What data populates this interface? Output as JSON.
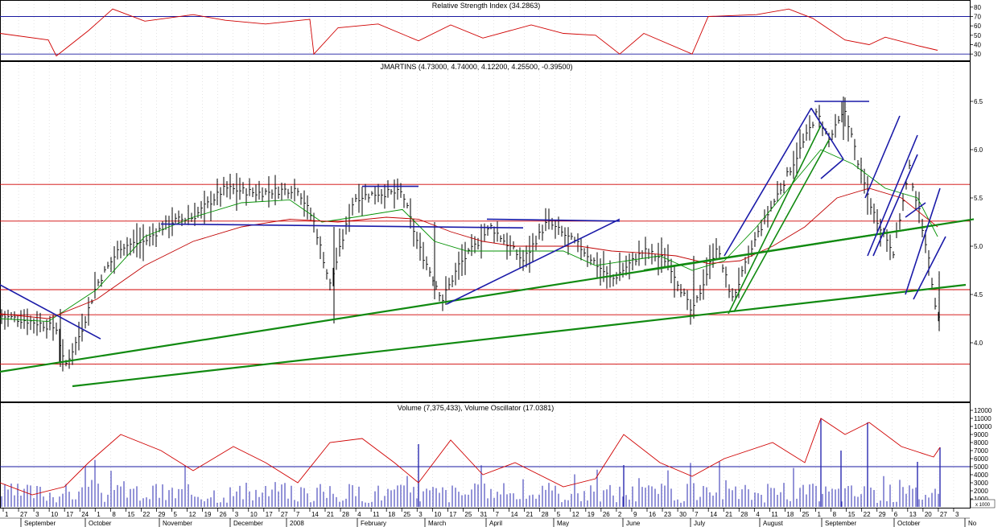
{
  "panels": {
    "rsi": {
      "title": "Relative Strength Index (34.2863)",
      "scale": [
        30,
        40,
        50,
        60,
        70,
        80
      ],
      "scale_min": 25,
      "scale_max": 85,
      "levels": [
        30,
        70
      ]
    },
    "price": {
      "title": "JMARTINS (4.73000, 4.74000, 4.12200, 4.25500, -0.39500)",
      "scale": [
        4.0,
        4.5,
        5.0,
        5.5,
        6.0,
        6.5
      ],
      "scale_min": 3.4,
      "scale_max": 6.8,
      "horizontal_levels": [
        5.64,
        5.26,
        4.55,
        4.29,
        3.78
      ]
    },
    "volume": {
      "title": "Volume (7,375,433), Volume Oscillator (17.0381)",
      "scale": [
        1000,
        2000,
        3000,
        4000,
        5000,
        6000,
        7000,
        8000,
        9000,
        10000,
        11000,
        12000
      ],
      "scale_min": 0,
      "scale_max": 12500,
      "level": 5000,
      "unit_badge": "x 1000"
    }
  },
  "x_axis": {
    "day_ticks": [
      "1",
      "27",
      "3",
      "10",
      "17",
      "24",
      "1",
      "8",
      "15",
      "22",
      "29",
      "5",
      "12",
      "19",
      "26",
      "3",
      "10",
      "17",
      "27",
      "7",
      "14",
      "21",
      "28",
      "4",
      "11",
      "18",
      "25",
      "3",
      "10",
      "17",
      "25",
      "31",
      "7",
      "14",
      "21",
      "28",
      "5",
      "12",
      "19",
      "26",
      "2",
      "9",
      "16",
      "23",
      "30",
      "7",
      "14",
      "21",
      "28",
      "4",
      "11",
      "18",
      "25",
      "1",
      "8",
      "15",
      "22",
      "29",
      "6",
      "13",
      "20",
      "27",
      "3"
    ],
    "months": [
      "September",
      "October",
      "November",
      "December",
      "2008",
      "February",
      "March",
      "April",
      "May",
      "June",
      "July",
      "August",
      "September",
      "October",
      "No"
    ]
  },
  "chart_data": [
    {
      "type": "line",
      "title": "Relative Strength Index (34.2863)",
      "ylim": [
        25,
        85
      ],
      "reference_lines": [
        30,
        70
      ],
      "series": [
        {
          "x": [
            0,
            60,
            70,
            110,
            140,
            180,
            240,
            280,
            330,
            385,
            390,
            420,
            470,
            520,
            560,
            600,
            660,
            700,
            740,
            770,
            800,
            860,
            880,
            940,
            980,
            1010,
            1050,
            1080,
            1100,
            1140,
            1165
          ],
          "values": [
            52,
            45,
            28,
            55,
            78,
            65,
            72,
            66,
            62,
            67,
            30,
            58,
            62,
            44,
            61,
            47,
            61,
            52,
            50,
            30,
            52,
            30,
            70,
            72,
            78,
            68,
            45,
            40,
            48,
            39,
            34
          ]
        }
      ]
    },
    {
      "type": "line",
      "title": "JMARTINS (4.73000, 4.74000, 4.12200, 4.25500, -0.39500)",
      "ylim": [
        3.4,
        6.8
      ],
      "series": [
        {
          "x": [
            0,
            40,
            70,
            80,
            100,
            120,
            150,
            180,
            210,
            240,
            280,
            320,
            370,
            390,
            410,
            440,
            470,
            500,
            520,
            550,
            570,
            610,
            650,
            680,
            720,
            760,
            800,
            830,
            860,
            890,
            910,
            940,
            970,
            1000,
            1015,
            1030,
            1050,
            1070,
            1085,
            1110,
            1130,
            1150,
            1165
          ],
          "values": [
            4.28,
            4.22,
            4.15,
            3.75,
            4.1,
            4.6,
            5.0,
            5.05,
            5.25,
            5.3,
            5.6,
            5.55,
            5.6,
            5.25,
            4.6,
            5.5,
            5.55,
            5.55,
            5.0,
            4.45,
            4.8,
            5.2,
            4.85,
            5.25,
            5.0,
            4.65,
            4.95,
            4.85,
            4.3,
            5.0,
            4.45,
            5.1,
            5.6,
            6.1,
            6.38,
            6.1,
            6.4,
            5.75,
            5.35,
            4.95,
            5.8,
            5.05,
            4.26
          ]
        },
        {
          "x": [
            0,
            60,
            120,
            180,
            240,
            300,
            360,
            400,
            440,
            500,
            540,
            580,
            620,
            660,
            700,
            740,
            780,
            820,
            860,
            900,
            940,
            980,
            1020,
            1060,
            1100,
            1140,
            1165
          ],
          "values": [
            4.25,
            4.22,
            4.55,
            5.1,
            5.3,
            5.45,
            5.48,
            5.25,
            5.3,
            5.38,
            5.05,
            4.95,
            4.95,
            4.95,
            4.95,
            4.8,
            4.85,
            4.9,
            4.75,
            4.85,
            5.2,
            5.6,
            6.0,
            5.85,
            5.6,
            5.5,
            5.1
          ]
        },
        {
          "x": [
            0,
            60,
            120,
            180,
            240,
            300,
            360,
            420,
            480,
            520,
            560,
            600,
            640,
            680,
            720,
            760,
            800,
            840,
            880,
            920,
            960,
            1000,
            1040,
            1080,
            1120,
            1165
          ],
          "values": [
            4.3,
            4.25,
            4.45,
            4.8,
            5.05,
            5.2,
            5.28,
            5.25,
            5.3,
            5.28,
            5.15,
            5.05,
            5.0,
            5.0,
            5.0,
            4.95,
            4.93,
            4.9,
            4.82,
            4.85,
            5.0,
            5.2,
            5.5,
            5.6,
            5.5,
            5.2
          ]
        }
      ]
    },
    {
      "type": "line",
      "title": "Volume (7,375,433), Volume Oscillator (17.0381)",
      "ylim": [
        0,
        12500
      ],
      "reference_lines": [
        5000
      ],
      "series": [
        {
          "x": [
            0,
            40,
            80,
            110,
            150,
            200,
            240,
            290,
            330,
            370,
            410,
            450,
            490,
            520,
            560,
            600,
            640,
            700,
            740,
            775,
            820,
            860,
            900,
            960,
            1000,
            1020,
            1050,
            1080,
            1120,
            1160,
            1168
          ],
          "values": [
            3000,
            1500,
            2500,
            5500,
            9000,
            7000,
            4500,
            7500,
            5500,
            3000,
            8000,
            8500,
            5500,
            3000,
            8300,
            4000,
            5500,
            2500,
            3500,
            9000,
            5500,
            3800,
            6000,
            8000,
            5500,
            11000,
            9000,
            10500,
            7500,
            6200,
            7400
          ]
        }
      ]
    }
  ]
}
